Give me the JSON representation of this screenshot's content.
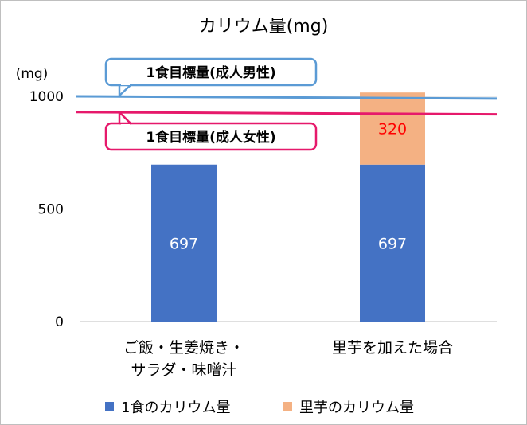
{
  "chart_data": {
    "type": "bar",
    "stacked": true,
    "title": "カリウム量(mg)",
    "unit_label": "(mg)",
    "categories": [
      [
        "ご飯・生姜焼き・",
        "サラダ・味噌汁"
      ],
      [
        "里芋を加えた場合"
      ]
    ],
    "series": [
      {
        "name": "1食のカリウム量",
        "values": [
          697,
          697
        ],
        "labels": [
          "697",
          "697"
        ],
        "color": "#4472c4",
        "label_color": "#ffffff"
      },
      {
        "name": "里芋のカリウム量",
        "values": [
          0,
          320
        ],
        "labels": [
          "",
          "320"
        ],
        "color": "#f4b183",
        "label_color": "#ff0000"
      }
    ],
    "yticks": [
      {
        "value": 0,
        "label": "0"
      },
      {
        "value": 500,
        "label": "500"
      },
      {
        "value": 1000,
        "label": "1000"
      }
    ],
    "ylim": [
      0,
      1000
    ],
    "grid": true,
    "legend_position": "bottom",
    "reference_lines": [
      {
        "label": "1食目標量(成人男性)",
        "value_left": 1000,
        "value_right": 990,
        "color": "#5b9bd5"
      },
      {
        "label": "1食目標量(成人女性)",
        "value_left": 930,
        "value_right": 920,
        "color": "#e6196b"
      }
    ]
  }
}
